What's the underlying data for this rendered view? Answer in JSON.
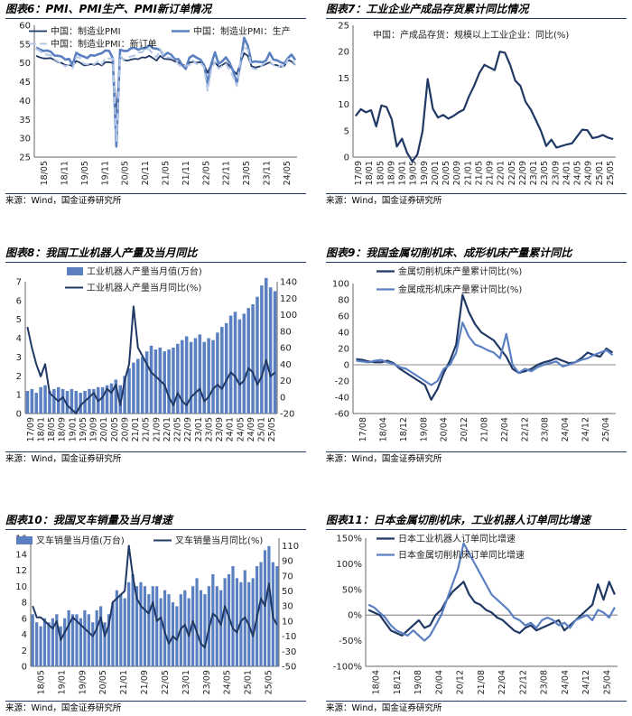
{
  "charts": [
    {
      "title": "图表6：PMI、PMI生产、PMI新订单情况",
      "source": "来源：Wind，国金证券研究所",
      "chart_data": {
        "type": "line",
        "ylim": [
          25,
          60
        ],
        "yticks": [
          25,
          30,
          35,
          40,
          45,
          50,
          55,
          60
        ],
        "xticks": [
          "18/05",
          "18/11",
          "19/05",
          "19/11",
          "20/05",
          "20/11",
          "21/05",
          "21/11",
          "22/05",
          "22/11",
          "23/05",
          "23/11",
          "24/05"
        ],
        "series": [
          {
            "name": "中国：制造业PMI",
            "color": "#1f3864",
            "dash": "",
            "width": 1.8,
            "values": [
              51.9,
              51.5,
              51.2,
              51.2,
              51.3,
              50.8,
              50.2,
              50.0,
              49.4,
              49.5,
              49.2,
              50.5,
              50.1,
              49.4,
              49.4,
              49.7,
              49.5,
              49.8,
              49.3,
              50.2,
              50.2,
              50.0,
              35.7,
              52.0,
              50.8,
              50.6,
              50.9,
              51.1,
              51.0,
              51.5,
              51.4,
              51.9,
              51.3,
              50.6,
              51.9,
              51.1,
              51.0,
              50.9,
              50.4,
              50.1,
              49.6,
              49.2,
              50.1,
              50.3,
              50.1,
              50.2,
              49.5,
              47.4,
              49.6,
              50.2,
              49.0,
              49.4,
              50.1,
              49.2,
              48.0,
              47.0,
              50.1,
              52.6,
              51.9,
              49.2,
              48.8,
              49.0,
              49.3,
              49.7,
              50.2,
              49.5,
              49.4,
              49.0,
              49.2,
              50.8,
              50.4,
              49.5
            ]
          },
          {
            "name": "中国：制造业PMI：生产",
            "color": "#5b80c2",
            "dash": "",
            "width": 2.6,
            "values": [
              54.1,
              53.6,
              53.2,
              53.3,
              53.0,
              52.0,
              51.9,
              51.7,
              50.9,
              51.1,
              49.5,
              52.7,
              52.1,
              51.7,
              51.3,
              52.1,
              51.9,
              52.3,
              52.6,
              53.3,
              53.2,
              51.3,
              27.8,
              53.5,
              53.2,
              53.2,
              53.9,
              54.0,
              53.5,
              53.9,
              53.9,
              54.7,
              53.9,
              53.8,
              53.5,
              51.9,
              52.7,
              52.2,
              51.0,
              51.0,
              49.5,
              48.4,
              51.4,
              52.0,
              51.4,
              50.9,
              49.5,
              44.5,
              49.7,
              52.8,
              49.8,
              50.4,
              51.5,
              50.1,
              47.8,
              44.6,
              49.8,
              56.7,
              54.6,
              50.2,
              50.4,
              50.3,
              50.2,
              50.6,
              52.7,
              50.9,
              50.7,
              50.2,
              49.8,
              51.3,
              52.2,
              50.8
            ]
          },
          {
            "name": "中国：制造业PMI：新订单",
            "color": "#b4c7e7",
            "dash": "8,4",
            "width": 2.0,
            "values": [
              53.8,
              53.2,
              52.3,
              52.2,
              52.0,
              51.0,
              50.4,
              49.8,
              49.1,
              49.6,
              48.6,
              51.6,
              51.4,
              49.8,
              49.6,
              49.8,
              49.7,
              50.5,
              49.6,
              51.3,
              51.2,
              51.2,
              29.3,
              52.0,
              50.9,
              51.4,
              51.7,
              52.0,
              52.8,
              52.8,
              53.9,
              53.6,
              52.3,
              51.5,
              53.6,
              52.0,
              51.5,
              51.3,
              50.9,
              49.6,
              48.8,
              49.3,
              49.4,
              50.7,
              49.7,
              50.1,
              48.8,
              42.6,
              48.2,
              50.4,
              48.5,
              49.2,
              49.8,
              48.1,
              46.4,
              43.9,
              50.9,
              54.1,
              53.6,
              48.8,
              48.3,
              48.6,
              49.5,
              50.2,
              50.5,
              49.5,
              48.7,
              49.4,
              49.0,
              51.0,
              51.1,
              49.6
            ]
          }
        ]
      }
    },
    {
      "title": "图表7：工业企业产成品存货累计同比情况",
      "source": "来源：Wind，国金证券研究所",
      "chart_data": {
        "type": "line",
        "ylim": [
          0,
          25
        ],
        "yticks": [
          0,
          5,
          10,
          15,
          20,
          25
        ],
        "xticks": [
          "17/09",
          "18/01",
          "18/05",
          "18/09",
          "19/01",
          "19/05",
          "19/09",
          "20/01",
          "20/05",
          "20/09",
          "21/01",
          "21/05",
          "21/09",
          "22/01",
          "22/05",
          "22/09",
          "23/01",
          "23/05",
          "23/09",
          "24/01",
          "24/05",
          "24/09",
          "25/01",
          "25/05"
        ],
        "series": [
          {
            "name": "中国：产成品存货：规模以上工业企业：同比(%)",
            "color": "#1f3864",
            "dash": "",
            "width": 2.2,
            "values": [
              7.8,
              9.1,
              8.5,
              8.9,
              5.8,
              9.8,
              9.5,
              7.2,
              2.0,
              3.5,
              0.8,
              -0.8,
              0.5,
              4.9,
              14.8,
              9.2,
              7.5,
              8.0,
              7.3,
              7.8,
              8.5,
              9.0,
              11.5,
              13.5,
              15.9,
              17.5,
              17.0,
              16.5,
              20.0,
              19.8,
              17.5,
              14.5,
              13.5,
              10.5,
              9.0,
              7.0,
              4.9,
              2.1,
              3.3,
              1.8,
              2.1,
              2.4,
              2.6,
              3.9,
              5.2,
              5.1,
              3.6,
              3.8,
              4.2,
              3.7,
              3.4
            ]
          }
        ]
      }
    },
    {
      "title": "图表8：我国工业机器人产量及当月同比",
      "source": "来源：Wind，国金证券研究所",
      "chart_data": {
        "type": "bar",
        "ylim": [
          0,
          7
        ],
        "yticks": [
          0,
          1,
          2,
          3,
          4,
          5,
          6,
          7
        ],
        "y2lim": [
          -20,
          140
        ],
        "y2ticks": [
          -20,
          0,
          20,
          40,
          60,
          80,
          100,
          120,
          140
        ],
        "xticks": [
          "17/09",
          "18/01",
          "18/05",
          "18/09",
          "19/01",
          "19/05",
          "19/09",
          "20/01",
          "20/05",
          "20/09",
          "21/01",
          "21/05",
          "21/09",
          "22/01",
          "22/05",
          "22/09",
          "23/01",
          "23/05",
          "23/09",
          "24/01",
          "24/05",
          "24/09",
          "25/01",
          "25/05"
        ],
        "series": [
          {
            "name": "工业机器人产量当月值(万台)",
            "color": "#5b80c2",
            "axis": "left",
            "type": "bar",
            "values": [
              1.2,
              1.3,
              1.1,
              1.4,
              1.5,
              1.2,
              1.3,
              1.4,
              1.3,
              1.2,
              1.3,
              1.2,
              1.1,
              1.2,
              1.3,
              1.3,
              1.4,
              1.4,
              1.5,
              1.6,
              1.8,
              1.5,
              2.0,
              2.4,
              2.7,
              2.9,
              3.0,
              3.3,
              3.6,
              3.4,
              3.5,
              3.3,
              3.4,
              3.5,
              3.7,
              3.9,
              4.1,
              3.8,
              4.0,
              4.2,
              3.8,
              4.0,
              3.9,
              4.3,
              4.6,
              4.8,
              5.2,
              5.4,
              5.0,
              5.3,
              5.6,
              5.8,
              6.2,
              6.8,
              7.2,
              6.7,
              6.5
            ]
          },
          {
            "name": "工业机器人产量当月同比(%)",
            "color": "#1f3864",
            "axis": "right",
            "type": "line",
            "values": [
              85,
              60,
              40,
              25,
              40,
              5,
              0,
              -5,
              0,
              -10,
              -15,
              -20,
              -10,
              -5,
              0,
              5,
              -5,
              0,
              10,
              5,
              15,
              -10,
              20,
              40,
              110,
              60,
              50,
              40,
              30,
              25,
              20,
              15,
              0,
              -10,
              5,
              -5,
              -10,
              0,
              5,
              10,
              -5,
              0,
              10,
              15,
              10,
              20,
              30,
              25,
              15,
              20,
              35,
              30,
              15,
              25,
              45,
              25,
              30
            ]
          }
        ]
      }
    },
    {
      "title": "图表9：我国金属切削机床、成形机床产量累计同比",
      "source": "来源：Wind，国金证券研究所",
      "chart_data": {
        "type": "line",
        "ylim": [
          -60,
          100
        ],
        "yticks": [
          -60,
          -40,
          -20,
          0,
          20,
          40,
          60,
          80,
          100
        ],
        "xticks": [
          "17/08",
          "18/04",
          "18/12",
          "19/08",
          "20/04",
          "20/12",
          "21/08",
          "22/04",
          "22/12",
          "23/08",
          "24/04",
          "24/12",
          "25/04"
        ],
        "series": [
          {
            "name": "金属切削机床产量累计同比(%)",
            "color": "#1f3864",
            "dash": "",
            "width": 2.2,
            "values": [
              7,
              6,
              4,
              3,
              3,
              5,
              2,
              -5,
              -10,
              -15,
              -20,
              -25,
              -43,
              -30,
              -10,
              5,
              25,
              86,
              65,
              50,
              40,
              35,
              30,
              20,
              10,
              -5,
              -10,
              -8,
              -5,
              0,
              3,
              5,
              8,
              5,
              2,
              3,
              8,
              15,
              12,
              10,
              20,
              15
            ]
          },
          {
            "name": "金属成形机床产量累计同比(%)",
            "color": "#5b80c2",
            "dash": "",
            "width": 2.2,
            "values": [
              5,
              4,
              3,
              5,
              6,
              3,
              1,
              -3,
              -5,
              -10,
              -15,
              -20,
              -25,
              -20,
              -5,
              0,
              15,
              52,
              35,
              25,
              22,
              18,
              15,
              8,
              38,
              0,
              -10,
              -5,
              -8,
              -3,
              0,
              2,
              4,
              -2,
              0,
              3,
              6,
              8,
              12,
              15,
              18,
              12
            ]
          }
        ]
      }
    },
    {
      "title": "图表10：我国叉车销量及当月增速",
      "source": "来源：Wind，国金证券研究所",
      "chart_data": {
        "type": "bar",
        "ylim": [
          0,
          16
        ],
        "yticks": [
          0,
          2,
          4,
          6,
          8,
          10,
          12,
          14,
          16
        ],
        "y2lim": [
          -50,
          120
        ],
        "y2ticks": [
          -50,
          -30,
          -10,
          10,
          30,
          50,
          70,
          90,
          110
        ],
        "xticks": [
          "18/05",
          "19/01",
          "19/09",
          "20/05",
          "21/01",
          "21/09",
          "22/05",
          "23/01",
          "23/09",
          "24/05",
          "25/01",
          "25/05"
        ],
        "series": [
          {
            "name": "叉车销量当月值(万台)",
            "color": "#5b80c2",
            "axis": "left",
            "type": "bar",
            "values": [
              6.5,
              5.5,
              5.0,
              6.0,
              5.5,
              6.0,
              6.5,
              5.0,
              6.0,
              7.0,
              6.5,
              6.5,
              6.0,
              7.0,
              6.5,
              5.5,
              7.0,
              7.5,
              5.5,
              6.5,
              8.0,
              9.5,
              9.0,
              8.5,
              10.5,
              11.5,
              10.0,
              10.5,
              10.0,
              9.0,
              10.0,
              10.0,
              8.5,
              9.5,
              9.0,
              8.0,
              7.5,
              9.0,
              9.5,
              8.5,
              10.0,
              11.0,
              9.5,
              9.0,
              10.0,
              11.5,
              10.0,
              9.5,
              11.0,
              11.5,
              12.5,
              11.0,
              10.5,
              12.0,
              10.5,
              11.0,
              12.5,
              13.0,
              14.5,
              15.0,
              13.0,
              12.5
            ]
          },
          {
            "name": "叉车销量当月同比(%)",
            "color": "#1f3864",
            "axis": "right",
            "type": "line",
            "values": [
              30,
              15,
              15,
              10,
              5,
              0,
              10,
              -15,
              -5,
              5,
              15,
              10,
              5,
              0,
              -5,
              -10,
              0,
              15,
              -10,
              5,
              35,
              40,
              45,
              50,
              110,
              70,
              40,
              30,
              25,
              20,
              35,
              10,
              15,
              -5,
              -20,
              -10,
              -15,
              0,
              5,
              -10,
              10,
              -5,
              -20,
              -25,
              0,
              20,
              15,
              5,
              30,
              15,
              0,
              -5,
              10,
              15,
              5,
              -10,
              15,
              40,
              30,
              60,
              15,
              5
            ]
          }
        ]
      }
    },
    {
      "title": "图表11：日本金属切削机床，工业机器人订单同比增速",
      "source": "来源：Wind，国金证券研究所",
      "chart_data": {
        "type": "line",
        "ylim": [
          -100,
          150
        ],
        "yticks": [
          -100,
          -50,
          0,
          50,
          100,
          150
        ],
        "ytick_labels": [
          "-100%",
          "-50%",
          "0%",
          "50%",
          "100%",
          "150%"
        ],
        "xticks": [
          "18/04",
          "18/12",
          "19/08",
          "20/04",
          "20/12",
          "21/08",
          "22/04",
          "22/12",
          "23/08",
          "24/04",
          "24/12",
          "25/04"
        ],
        "series": [
          {
            "name": "日本工业机器人订单同比增速",
            "color": "#1f3864",
            "dash": "",
            "width": 2.2,
            "values": [
              10,
              5,
              0,
              -15,
              -30,
              -35,
              -40,
              -30,
              -20,
              -10,
              -25,
              -20,
              0,
              10,
              30,
              45,
              55,
              65,
              40,
              25,
              20,
              10,
              5,
              -5,
              -10,
              -20,
              -30,
              -35,
              -25,
              -20,
              -30,
              -25,
              -20,
              -15,
              -10,
              -30,
              -20,
              -10,
              0,
              10,
              20,
              60,
              30,
              65,
              40
            ]
          },
          {
            "name": "日本金属切削机床订单同比增速",
            "color": "#5b80c2",
            "dash": "",
            "width": 2.2,
            "values": [
              20,
              15,
              5,
              -5,
              -20,
              -30,
              -35,
              -40,
              -30,
              -40,
              -50,
              -40,
              -20,
              0,
              30,
              60,
              90,
              140,
              120,
              100,
              80,
              60,
              40,
              30,
              20,
              10,
              -5,
              -10,
              -20,
              -15,
              -25,
              -10,
              -5,
              -10,
              -20,
              -15,
              -25,
              -10,
              -5,
              0,
              -10,
              10,
              5,
              -5,
              15
            ]
          }
        ]
      }
    }
  ]
}
